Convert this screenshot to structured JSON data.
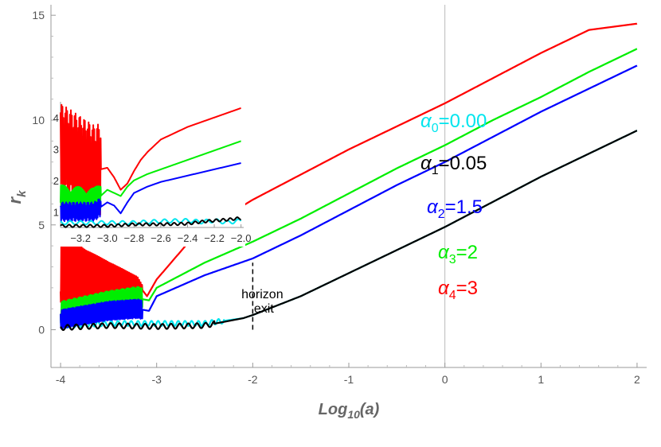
{
  "chart_data": [
    {
      "type": "line",
      "xlabel": "Log10(a)",
      "ylabel": "r_k",
      "xlim": [
        -4.1,
        2.1
      ],
      "ylim": [
        -1.8,
        15.5
      ],
      "xticks": [
        -4,
        -3,
        -2,
        -1,
        0,
        1,
        2
      ],
      "xtick_labels": [
        "-4",
        "-3",
        "-2",
        "-1",
        "0",
        "1",
        "2"
      ],
      "yticks": [
        0,
        5,
        10,
        15
      ],
      "ytick_labels": [
        "0",
        "5",
        "10",
        "15"
      ],
      "grid": false,
      "reference_line_x": 0,
      "series": [
        {
          "name": "α0=0.00",
          "color": "#00e5ee",
          "x": [
            -4.0,
            -3.5,
            -3.0,
            -2.5,
            -2.1,
            -2.0,
            -1.5,
            -1.0,
            -0.5,
            0.0,
            0.5,
            1.0,
            1.5,
            2.0
          ],
          "y": [
            0.2,
            0.3,
            0.3,
            0.3,
            0.55,
            0.7,
            1.6,
            2.7,
            3.8,
            4.9,
            6.1,
            7.3,
            8.4,
            9.5
          ]
        },
        {
          "name": "α1=0.05",
          "color": "#000000",
          "x": [
            -4.0,
            -3.5,
            -3.0,
            -2.5,
            -2.1,
            -2.0,
            -1.5,
            -1.0,
            -0.5,
            0.0,
            0.5,
            1.0,
            1.5,
            2.0
          ],
          "y": [
            0.1,
            0.2,
            0.15,
            0.2,
            0.55,
            0.7,
            1.6,
            2.7,
            3.8,
            4.9,
            6.1,
            7.3,
            8.4,
            9.5
          ]
        },
        {
          "name": "α2=1.5",
          "color": "#0000ff",
          "x": [
            -4.0,
            -3.5,
            -3.2,
            -3.08,
            -3.0,
            -2.5,
            -2.0,
            -1.5,
            -1.0,
            -0.5,
            0.0,
            0.5,
            1.0,
            1.5,
            2.0
          ],
          "y": [
            0.5,
            0.9,
            1.0,
            0.9,
            1.6,
            2.6,
            3.4,
            4.5,
            5.7,
            6.9,
            8.0,
            9.2,
            10.4,
            11.5,
            12.6
          ]
        },
        {
          "name": "α3=2",
          "color": "#00ee00",
          "x": [
            -4.0,
            -3.5,
            -3.2,
            -3.08,
            -3.0,
            -2.5,
            -2.0,
            -1.5,
            -1.0,
            -0.5,
            0.0,
            0.5,
            1.0,
            1.5,
            2.0
          ],
          "y": [
            0.8,
            1.3,
            1.5,
            1.4,
            2.0,
            3.2,
            4.2,
            5.3,
            6.5,
            7.7,
            8.8,
            10.0,
            11.1,
            12.3,
            13.4
          ]
        },
        {
          "name": "α4=3",
          "color": "#ff0000",
          "x": [
            -4.0,
            -3.5,
            -3.2,
            -3.1,
            -3.0,
            -2.7,
            -2.5,
            -2.0,
            -1.5,
            -1.0,
            -0.5,
            0.0,
            0.5,
            1.0,
            1.5,
            2.0
          ],
          "y": [
            3.0,
            2.4,
            2.2,
            1.6,
            2.4,
            4.0,
            4.8,
            6.2,
            7.4,
            8.6,
            9.7,
            10.8,
            12.0,
            13.2,
            14.3,
            14.6
          ]
        }
      ],
      "annotations": [
        {
          "text_line1": "horizon",
          "text_line2": "exit",
          "x": -2.0,
          "y": 1.2,
          "dashed_line_x": -2.0,
          "dashed_line_y": [
            0,
            3.2
          ]
        }
      ],
      "legend": {
        "placement": "right-center",
        "entries": [
          {
            "symbol": "α",
            "sub": "0",
            "rest": "=0.00",
            "color": "#00e5ee"
          },
          {
            "symbol": "α",
            "sub": "1",
            "rest": "=0.05",
            "color": "#000000"
          },
          {
            "symbol": "α",
            "sub": "2",
            "rest": "=1.5",
            "color": "#0000ff"
          },
          {
            "symbol": "α",
            "sub": "3",
            "rest": "=2",
            "color": "#00ee00"
          },
          {
            "symbol": "α",
            "sub": "4",
            "rest": "=3",
            "color": "#ff0000"
          }
        ]
      }
    },
    {
      "type": "line",
      "placement": "inset-upper-left",
      "xlim": [
        -3.35,
        -1.98
      ],
      "ylim": [
        0.5,
        4.5
      ],
      "xticks": [
        -3.2,
        -3.0,
        -2.8,
        -2.6,
        -2.4,
        -2.2,
        -2.0
      ],
      "xtick_labels": [
        "-3.2",
        "-3.0",
        "-2.8",
        "-2.6",
        "-2.4",
        "-2.2",
        "-2.0"
      ],
      "yticks": [
        1,
        2,
        3,
        4
      ],
      "ytick_labels": [
        "1",
        "2",
        "3",
        "4"
      ],
      "series": [
        {
          "name": "α4=3",
          "color": "#ff0000",
          "x": [
            -3.35,
            -3.1,
            -3.0,
            -2.95,
            -2.9,
            -2.85,
            -2.8,
            -2.75,
            -2.7,
            -2.6,
            -2.5,
            -2.4,
            -2.3,
            -2.2,
            -2.1,
            -2.0
          ],
          "y": [
            3.0,
            2.3,
            2.4,
            2.1,
            1.7,
            1.9,
            2.3,
            2.65,
            2.9,
            3.3,
            3.5,
            3.7,
            3.85,
            4.0,
            4.15,
            4.3
          ]
        },
        {
          "name": "α3=2",
          "color": "#00ee00",
          "x": [
            -3.35,
            -3.1,
            -3.0,
            -2.95,
            -2.9,
            -2.85,
            -2.8,
            -2.7,
            -2.6,
            -2.5,
            -2.4,
            -2.3,
            -2.2,
            -2.1,
            -2.0
          ],
          "y": [
            1.4,
            1.3,
            1.7,
            1.6,
            1.5,
            1.8,
            2.0,
            2.2,
            2.35,
            2.5,
            2.65,
            2.8,
            2.95,
            3.1,
            3.25
          ]
        },
        {
          "name": "α2=1.5",
          "color": "#0000ff",
          "x": [
            -3.35,
            -3.1,
            -3.0,
            -2.95,
            -2.9,
            -2.85,
            -2.8,
            -2.7,
            -2.6,
            -2.5,
            -2.4,
            -2.3,
            -2.2,
            -2.1,
            -2.0
          ],
          "y": [
            1.0,
            1.0,
            1.3,
            1.2,
            0.95,
            1.3,
            1.6,
            1.8,
            1.95,
            2.05,
            2.15,
            2.25,
            2.35,
            2.45,
            2.55
          ]
        },
        {
          "name": "α0=0.00",
          "color": "#00e5ee",
          "x": [
            -3.35,
            -3.0,
            -2.8,
            -2.6,
            -2.4,
            -2.3,
            -2.2,
            -2.1,
            -2.0
          ],
          "y": [
            0.65,
            0.65,
            0.65,
            0.7,
            0.72,
            0.68,
            0.72,
            0.66,
            0.72
          ]
        },
        {
          "name": "α1=0.05",
          "color": "#000000",
          "x": [
            -3.35,
            -3.0,
            -2.8,
            -2.6,
            -2.4,
            -2.3,
            -2.2,
            -2.1,
            -2.0
          ],
          "y": [
            0.55,
            0.55,
            0.6,
            0.6,
            0.62,
            0.68,
            0.72,
            0.75,
            0.8
          ]
        }
      ]
    }
  ]
}
